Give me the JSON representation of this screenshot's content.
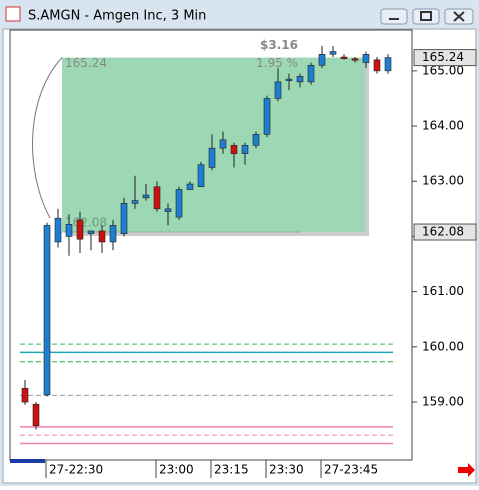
{
  "window": {
    "title": "S.AMGN - Amgen Inc, 3 Min"
  },
  "chart_data": {
    "type": "candlestick",
    "categories": [
      null,
      null,
      "27-22:30",
      null,
      null,
      null,
      null,
      null,
      null,
      null,
      null,
      null,
      "23:00",
      null,
      null,
      null,
      null,
      "23:15",
      null,
      null,
      null,
      null,
      "23:30",
      null,
      null,
      null,
      null,
      "27-23:45",
      null,
      null,
      null,
      null,
      null,
      null
    ],
    "series": [
      {
        "name": "open",
        "values": [
          159.25,
          158.96,
          159.13,
          161.9,
          162.0,
          162.3,
          162.05,
          162.1,
          161.9,
          162.05,
          162.6,
          162.7,
          162.9,
          162.45,
          162.35,
          162.85,
          162.9,
          163.25,
          163.6,
          163.65,
          163.5,
          163.65,
          163.85,
          164.5,
          164.85,
          164.8,
          164.8,
          165.1,
          165.3,
          165.25,
          165.22,
          165.15,
          165.2,
          165.0
        ]
      },
      {
        "name": "high",
        "values": [
          159.4,
          159.0,
          162.25,
          162.5,
          162.4,
          162.45,
          162.1,
          162.2,
          162.3,
          162.7,
          163.1,
          162.95,
          163.0,
          162.6,
          162.9,
          163.0,
          163.35,
          163.85,
          163.9,
          163.7,
          163.7,
          163.9,
          164.55,
          165.05,
          164.95,
          164.95,
          165.15,
          165.45,
          165.45,
          165.3,
          165.25,
          165.35,
          165.25,
          165.3
        ]
      },
      {
        "name": "low",
        "values": [
          158.95,
          158.5,
          159.1,
          161.8,
          161.65,
          161.7,
          161.75,
          161.7,
          161.75,
          162.0,
          162.5,
          162.65,
          162.45,
          162.2,
          162.3,
          162.85,
          162.9,
          163.2,
          163.5,
          163.25,
          163.3,
          163.6,
          163.8,
          164.45,
          164.65,
          164.7,
          164.75,
          165.05,
          165.25,
          165.2,
          165.15,
          165.05,
          164.95,
          164.95
        ]
      },
      {
        "name": "close",
        "values": [
          159.0,
          158.57,
          162.2,
          162.33,
          162.22,
          161.95,
          162.1,
          161.9,
          162.2,
          162.6,
          162.65,
          162.75,
          162.5,
          162.5,
          162.85,
          162.95,
          163.3,
          163.6,
          163.75,
          163.5,
          163.65,
          163.85,
          164.5,
          164.8,
          164.85,
          164.9,
          165.1,
          165.3,
          165.35,
          165.22,
          165.2,
          165.3,
          165.0,
          165.24
        ]
      }
    ],
    "up_color": "#1e7fd0",
    "down_color": "#cc1111",
    "ylim": [
      157.95,
      165.74
    ],
    "yticks": [
      {
        "value": 159,
        "label": "159.00"
      },
      {
        "value": 160,
        "label": "160.00"
      },
      {
        "value": 161,
        "label": "161.00"
      },
      {
        "value": 162,
        "label": "162.00"
      },
      {
        "value": 163,
        "label": "163.00"
      },
      {
        "value": 164,
        "label": "164.00"
      },
      {
        "value": 165,
        "label": "165.00"
      }
    ],
    "price_tags": [
      {
        "value": 165.24,
        "label": "165.24"
      },
      {
        "value": 162.08,
        "label": "162.08"
      }
    ],
    "levels": [
      {
        "value": 160.05,
        "color": "#2db84a",
        "dash": true
      },
      {
        "value": 159.9,
        "color": "#1aa6b8",
        "dash": false
      },
      {
        "value": 159.73,
        "color": "#2db84a",
        "dash": true
      },
      {
        "value": 159.12,
        "color": "#999999",
        "dash": true
      },
      {
        "value": 158.55,
        "color": "#f080b0",
        "dash": false
      },
      {
        "value": 158.4,
        "color": "#f080b0",
        "dash": true
      },
      {
        "value": 158.25,
        "color": "#f080b0",
        "dash": false
      }
    ],
    "measure": {
      "start": {
        "value": 162.08,
        "label": "162.08"
      },
      "end": {
        "value": 165.24,
        "label": "165.24"
      },
      "change": "$3.16",
      "percent": "1.95 %",
      "color": "#9dd8b4"
    }
  }
}
